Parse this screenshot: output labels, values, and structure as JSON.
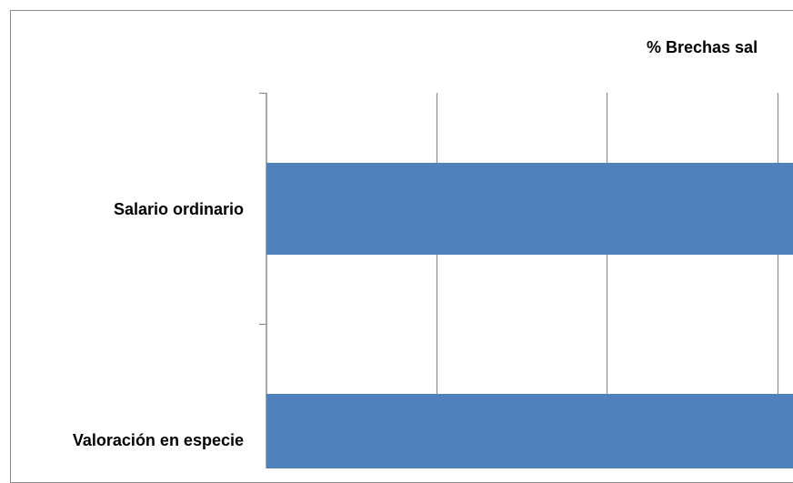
{
  "chart_data": {
    "type": "bar",
    "orientation": "horizontal",
    "title": "% Brechas sal",
    "categories": [
      "Salario ordinario",
      "Valoración en especie"
    ],
    "series": [
      {
        "values": [
          100,
          100
        ]
      }
    ],
    "xlim": [
      0,
      100
    ],
    "grid": true,
    "colors": {
      "bar": "#4F81BD",
      "grid": "#8c8c8c",
      "axis": "#8c8c8c"
    }
  }
}
